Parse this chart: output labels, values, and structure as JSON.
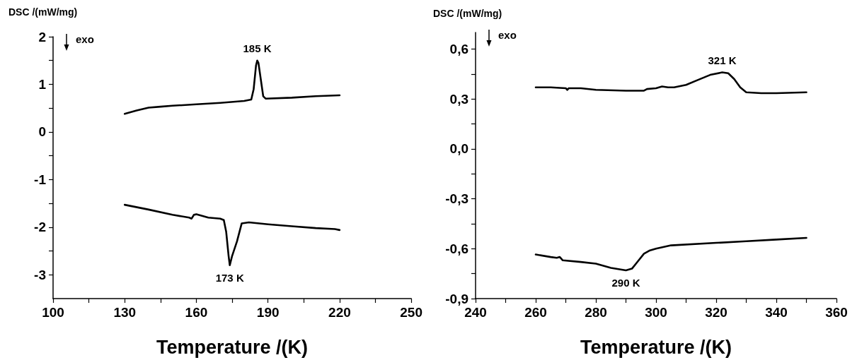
{
  "chart_data": [
    {
      "type": "line",
      "xlabel": "Temperature /(K)",
      "ylabel": "DSC /(mW/mg)",
      "marker": "none",
      "line_style": "solid",
      "grid": false,
      "xlim": [
        100,
        250
      ],
      "ylim": [
        -3.5,
        2
      ],
      "xticks": [
        100,
        {
          "value": 115,
          "label": null
        },
        130,
        {
          "value": 145,
          "label": null
        },
        160,
        {
          "value": 175,
          "label": null
        },
        190,
        {
          "value": 205,
          "label": null
        },
        220,
        {
          "value": 235,
          "label": null
        },
        250
      ],
      "yticks": [
        -3,
        {
          "value": -2.5,
          "label": null
        },
        -2,
        {
          "value": -1.5,
          "label": null
        },
        -1,
        {
          "value": -0.5,
          "label": null
        },
        0,
        {
          "value": 0.5,
          "label": null
        },
        1,
        {
          "value": 1.5,
          "label": null
        },
        2
      ],
      "series": [
        {
          "color": "#000000",
          "x": [
            130,
            135,
            140,
            145,
            150,
            160,
            170,
            180,
            183,
            184,
            185,
            185.5,
            186,
            187,
            188,
            189,
            200,
            210,
            220
          ],
          "values": [
            0.38,
            0.45,
            0.51,
            0.53,
            0.55,
            0.58,
            0.61,
            0.65,
            0.68,
            0.9,
            1.4,
            1.5,
            1.45,
            1.1,
            0.75,
            0.7,
            0.72,
            0.75,
            0.77
          ]
        },
        {
          "color": "#000000",
          "x": [
            130,
            140,
            150,
            157,
            158,
            159,
            160,
            165,
            170,
            171.5,
            172.5,
            173.5,
            174,
            175,
            177,
            179,
            182,
            190,
            200,
            210,
            218,
            220
          ],
          "values": [
            -1.53,
            -1.63,
            -1.74,
            -1.8,
            -1.82,
            -1.74,
            -1.73,
            -1.8,
            -1.82,
            -1.85,
            -2.1,
            -2.6,
            -2.8,
            -2.6,
            -2.3,
            -1.92,
            -1.9,
            -1.94,
            -1.98,
            -2.02,
            -2.04,
            -2.06
          ]
        }
      ],
      "annotations": [
        "exo",
        {
          "text": "185 K",
          "x": 185.5,
          "y": 1.5
        },
        {
          "text": "173 K",
          "x": 174,
          "y": -2.8
        }
      ]
    },
    {
      "type": "line",
      "xlabel": "Temperature /(K)",
      "ylabel": "DSC /(mW/mg)",
      "marker": "none",
      "line_style": "solid",
      "grid": false,
      "xlim": [
        240,
        360
      ],
      "ylim": [
        -0.9,
        0.7
      ],
      "xticks": [
        240,
        {
          "value": 250,
          "label": null
        },
        260,
        {
          "value": 270,
          "label": null
        },
        280,
        {
          "value": 290,
          "label": null
        },
        300,
        {
          "value": 310,
          "label": null
        },
        320,
        {
          "value": 330,
          "label": null
        },
        340,
        {
          "value": 350,
          "label": null
        },
        360
      ],
      "yticks": [
        {
          "value": -0.9,
          "label": "-0,9"
        },
        {
          "value": -0.75,
          "label": null
        },
        {
          "value": -0.6,
          "label": "-0,6"
        },
        {
          "value": -0.45,
          "label": null
        },
        {
          "value": -0.3,
          "label": "-0,3"
        },
        {
          "value": -0.15,
          "label": null
        },
        {
          "value": 0,
          "label": "0,0"
        },
        {
          "value": 0.15,
          "label": null
        },
        {
          "value": 0.3,
          "label": "0,3"
        },
        {
          "value": 0.45,
          "label": null
        },
        {
          "value": 0.6,
          "label": "0,6"
        }
      ],
      "series": [
        {
          "color": "#000000",
          "x": [
            260,
            265,
            270,
            270.5,
            271,
            275,
            280,
            290,
            296,
            297,
            300,
            302,
            304,
            306,
            310,
            314,
            318,
            322,
            324,
            326,
            328,
            330,
            335,
            340,
            350
          ],
          "values": [
            0.37,
            0.37,
            0.365,
            0.355,
            0.365,
            0.365,
            0.355,
            0.35,
            0.35,
            0.36,
            0.365,
            0.375,
            0.37,
            0.37,
            0.385,
            0.415,
            0.445,
            0.46,
            0.455,
            0.42,
            0.37,
            0.34,
            0.335,
            0.335,
            0.34
          ]
        },
        {
          "color": "#000000",
          "x": [
            260,
            265,
            267,
            268,
            269,
            275,
            280,
            285,
            290,
            292,
            294,
            296,
            298,
            300,
            305,
            320,
            330,
            340,
            350
          ],
          "values": [
            -0.635,
            -0.65,
            -0.655,
            -0.65,
            -0.67,
            -0.68,
            -0.69,
            -0.715,
            -0.73,
            -0.72,
            -0.675,
            -0.63,
            -0.61,
            -0.6,
            -0.58,
            -0.565,
            -0.555,
            -0.545,
            -0.535
          ]
        }
      ],
      "annotations": [
        "exo",
        {
          "text": "321 K",
          "x": 322,
          "y": 0.46
        },
        {
          "text": "290 K",
          "x": 290,
          "y": -0.73
        }
      ]
    }
  ]
}
